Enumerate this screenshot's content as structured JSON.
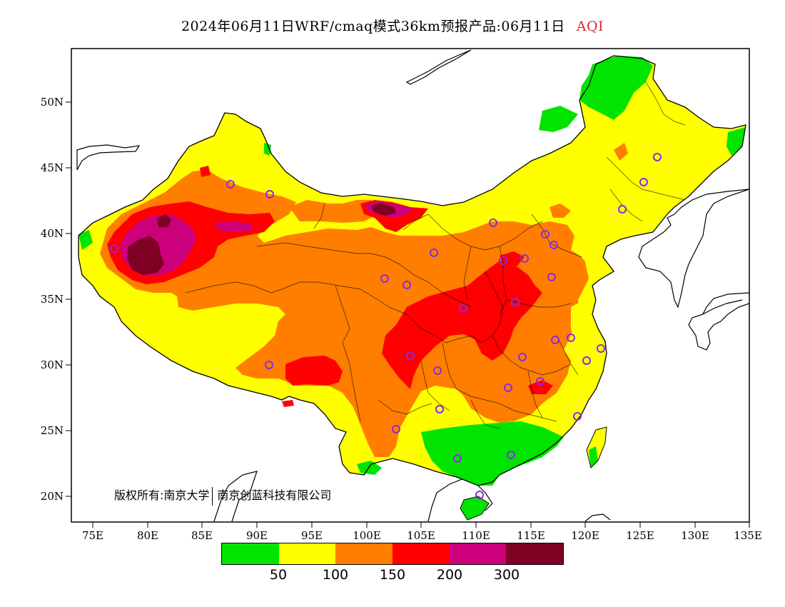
{
  "title": {
    "main": "2024年06月11日WRF/cmaq模式36km预报产品:06月11日",
    "variable": "AQI",
    "variable_color": "#d9282f"
  },
  "axes": {
    "lon_ticks": [
      "75E",
      "80E",
      "85E",
      "90E",
      "95E",
      "100E",
      "105E",
      "110E",
      "115E",
      "120E",
      "125E",
      "130E",
      "135E"
    ],
    "lat_ticks": [
      "50N",
      "45N",
      "40N",
      "35N",
      "30N",
      "25N",
      "20N"
    ]
  },
  "copyright": {
    "left": "版权所有:南京大学",
    "right": "南京创蓝科技有限公司"
  },
  "legend": {
    "colors": [
      "#00e400",
      "#ffff00",
      "#ff7e00",
      "#ff0000",
      "#cc007a",
      "#7e0023"
    ],
    "labels": [
      "50",
      "100",
      "150",
      "200",
      "300"
    ]
  },
  "stations": {
    "marker": "circle",
    "color": "#8a2be2",
    "count": 38
  }
}
